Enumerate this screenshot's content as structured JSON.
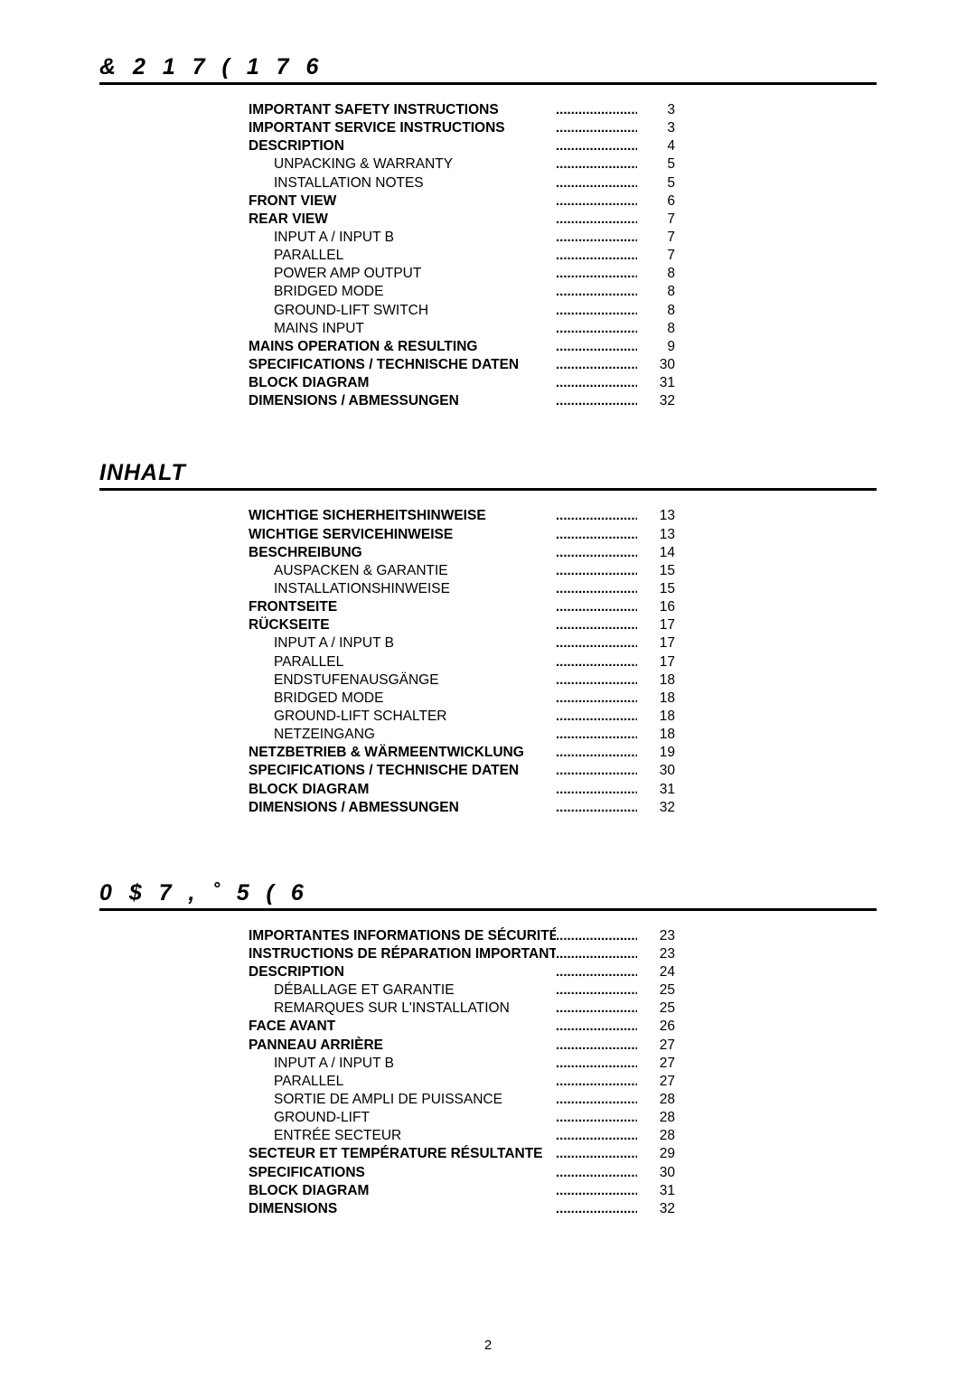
{
  "pageNumber": "2",
  "dots": ".......................",
  "sections": [
    {
      "heading": "& 2 1 7 ( 1 7 6",
      "heading_class": "contents",
      "entries": [
        {
          "label": "IMPORTANT SAFETY INSTRUCTIONS",
          "page": "3",
          "bold": true,
          "sub": false
        },
        {
          "label": "IMPORTANT SERVICE INSTRUCTIONS",
          "page": "3",
          "bold": true,
          "sub": false
        },
        {
          "label": "DESCRIPTION",
          "page": "4",
          "bold": true,
          "sub": false
        },
        {
          "label": "UNPACKING & WARRANTY",
          "page": "5",
          "bold": false,
          "sub": true
        },
        {
          "label": "INSTALLATION NOTES",
          "page": "5",
          "bold": false,
          "sub": true
        },
        {
          "label": "FRONT VIEW",
          "page": "6",
          "bold": true,
          "sub": false
        },
        {
          "label": "REAR VIEW",
          "page": "7",
          "bold": true,
          "sub": false
        },
        {
          "label": "INPUT A / INPUT B",
          "page": "7",
          "bold": false,
          "sub": true
        },
        {
          "label": "PARALLEL",
          "page": "7",
          "bold": false,
          "sub": true
        },
        {
          "label": "POWER AMP OUTPUT",
          "page": "8",
          "bold": false,
          "sub": true
        },
        {
          "label": "BRIDGED MODE",
          "page": "8",
          "bold": false,
          "sub": true
        },
        {
          "label": "GROUND-LIFT SWITCH",
          "page": "8",
          "bold": false,
          "sub": true
        },
        {
          "label": "MAINS INPUT",
          "page": "8",
          "bold": false,
          "sub": true
        },
        {
          "label": "MAINS OPERATION & RESULTING",
          "page": "9",
          "bold": true,
          "sub": false
        },
        {
          "label": "SPECIFICATIONS / TECHNISCHE DATEN",
          "page": "30",
          "bold": true,
          "sub": false
        },
        {
          "label": "BLOCK DIAGRAM",
          "page": "31",
          "bold": true,
          "sub": false
        },
        {
          "label": "DIMENSIONS / ABMESSUNGEN",
          "page": "32",
          "bold": true,
          "sub": false
        }
      ]
    },
    {
      "heading": "INHALT",
      "heading_class": "inhalt",
      "entries": [
        {
          "label": "WICHTIGE SICHERHEITSHINWEISE",
          "page": "13",
          "bold": true,
          "sub": false
        },
        {
          "label": "WICHTIGE SERVICEHINWEISE",
          "page": "13",
          "bold": true,
          "sub": false
        },
        {
          "label": "BESCHREIBUNG",
          "page": "14",
          "bold": true,
          "sub": false
        },
        {
          "label": "AUSPACKEN & GARANTIE",
          "page": "15",
          "bold": false,
          "sub": true
        },
        {
          "label": "INSTALLATIONSHINWEISE",
          "page": "15",
          "bold": false,
          "sub": true
        },
        {
          "label": "FRONTSEITE",
          "page": "16",
          "bold": true,
          "sub": false
        },
        {
          "label": "RÜCKSEITE",
          "page": "17",
          "bold": true,
          "sub": false
        },
        {
          "label": "INPUT A / INPUT B",
          "page": "17",
          "bold": false,
          "sub": true
        },
        {
          "label": "PARALLEL",
          "page": "17",
          "bold": false,
          "sub": true
        },
        {
          "label": "ENDSTUFENAUSGÄNGE",
          "page": "18",
          "bold": false,
          "sub": true
        },
        {
          "label": "BRIDGED MODE",
          "page": "18",
          "bold": false,
          "sub": true
        },
        {
          "label": "GROUND-LIFT SCHALTER",
          "page": "18",
          "bold": false,
          "sub": true
        },
        {
          "label": "NETZEINGANG",
          "page": "18",
          "bold": false,
          "sub": true
        },
        {
          "label": "NETZBETRIEB & WÄRMEENTWICKLUNG",
          "page": "19",
          "bold": true,
          "sub": false
        },
        {
          "label": "SPECIFICATIONS / TECHNISCHE DATEN",
          "page": "30",
          "bold": true,
          "sub": false
        },
        {
          "label": "BLOCK DIAGRAM",
          "page": "31",
          "bold": true,
          "sub": false
        },
        {
          "label": "DIMENSIONS / ABMESSUNGEN",
          "page": "32",
          "bold": true,
          "sub": false
        }
      ]
    },
    {
      "heading": "0 $ 7 , ˚ 5 ( 6",
      "heading_class": "matieres",
      "entries": [
        {
          "label": "IMPORTANTES INFORMATIONS DE SÉCURITÉ",
          "page": "23",
          "bold": true,
          "sub": false
        },
        {
          "label": "INSTRUCTIONS DE RÉPARATION IMPORTANTES",
          "page": "23",
          "bold": true,
          "sub": false
        },
        {
          "label": "DESCRIPTION",
          "page": "24",
          "bold": true,
          "sub": false
        },
        {
          "label": "DÉBALLAGE ET GARANTIE",
          "page": "25",
          "bold": false,
          "sub": true
        },
        {
          "label": "REMARQUES SUR L'INSTALLATION",
          "page": "25",
          "bold": false,
          "sub": true
        },
        {
          "label": "FACE AVANT",
          "page": "26",
          "bold": true,
          "sub": false
        },
        {
          "label": "PANNEAU ARRIÈRE",
          "page": "27",
          "bold": true,
          "sub": false
        },
        {
          "label": "INPUT A / INPUT B",
          "page": "27",
          "bold": false,
          "sub": true
        },
        {
          "label": "PARALLEL",
          "page": "27",
          "bold": false,
          "sub": true
        },
        {
          "label": "SORTIE DE AMPLI DE PUISSANCE",
          "page": "28",
          "bold": false,
          "sub": true
        },
        {
          "label": "GROUND-LIFT",
          "page": "28",
          "bold": false,
          "sub": true
        },
        {
          "label": "ENTRÉE SECTEUR",
          "page": "28",
          "bold": false,
          "sub": true
        },
        {
          "label": "SECTEUR ET TEMPÉRATURE RÉSULTANTE",
          "page": "29",
          "bold": true,
          "sub": false
        },
        {
          "label": "SPECIFICATIONS",
          "page": "30",
          "bold": true,
          "sub": false
        },
        {
          "label": "BLOCK DIAGRAM",
          "page": "31",
          "bold": true,
          "sub": false
        },
        {
          "label": "DIMENSIONS",
          "page": "32",
          "bold": true,
          "sub": false
        }
      ]
    }
  ]
}
